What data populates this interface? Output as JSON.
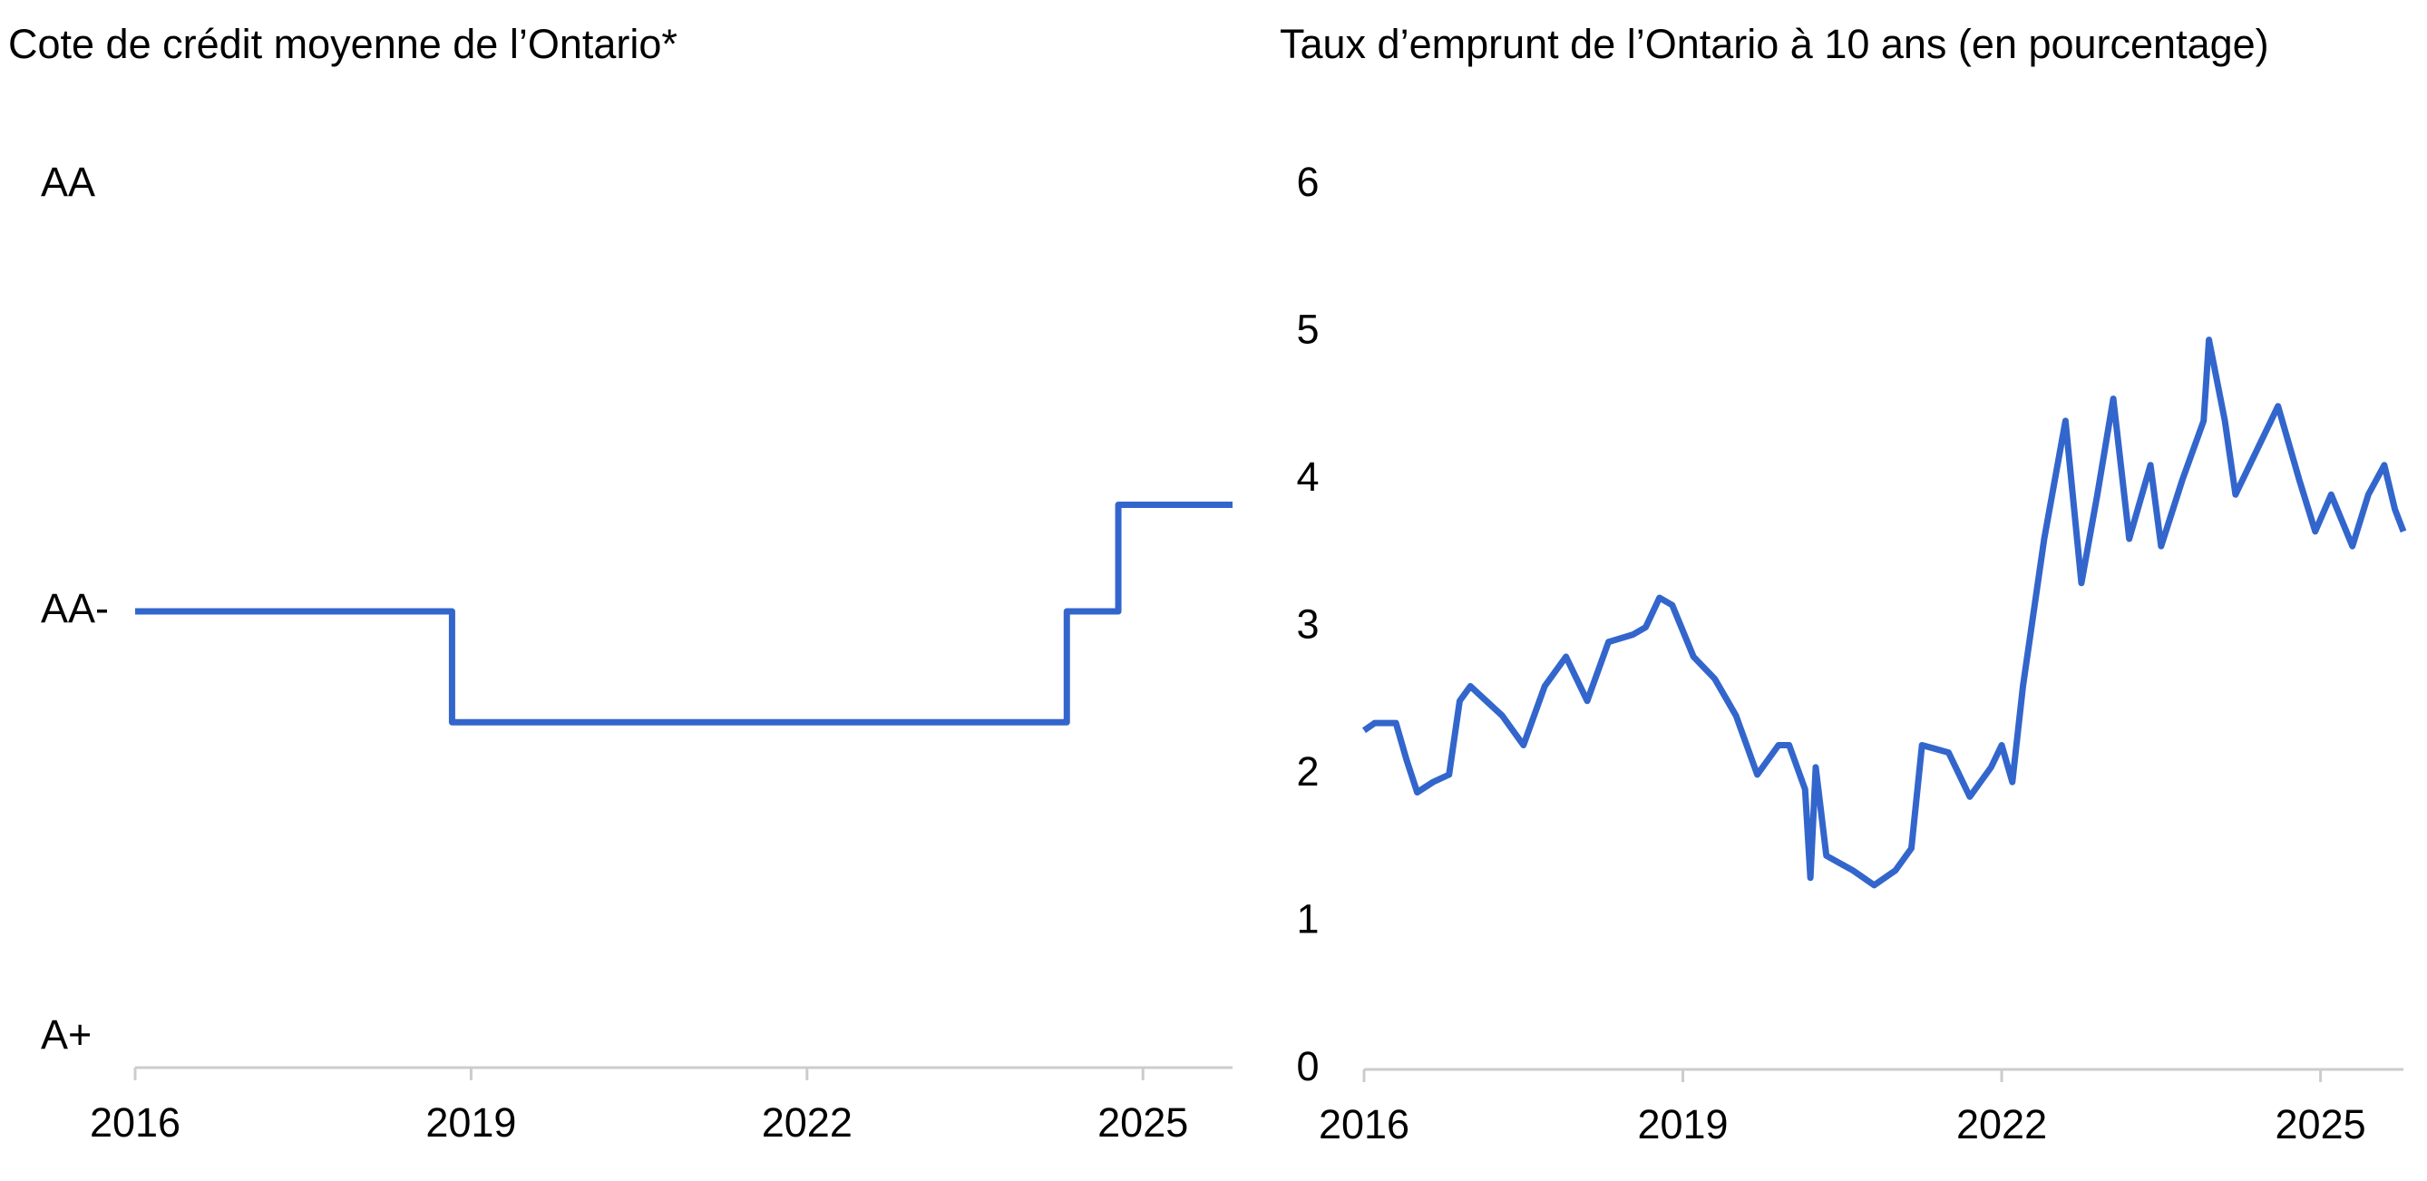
{
  "chart_data": [
    {
      "type": "line",
      "title": "Cote de crédit moyenne de l’Ontario*",
      "x": [
        2016,
        2018.83,
        2018.83,
        2024.32,
        2024.32,
        2024.78,
        2024.78,
        2025.8
      ],
      "series": [
        {
          "color": "#3366cc",
          "values": [
            1,
            1,
            0.74,
            0.74,
            1,
            1,
            1.25,
            1.25
          ]
        }
      ],
      "xlim": [
        2016,
        2025.8
      ],
      "xticks": [
        2016,
        2019,
        2022,
        2025
      ],
      "ylim": [
        -0.07,
        2
      ],
      "yticks": [
        {
          "value": 0,
          "label": "A+"
        },
        {
          "value": 1,
          "label": "AA-"
        },
        {
          "value": 2,
          "label": "AA"
        }
      ]
    },
    {
      "type": "line",
      "title": "Taux d’emprunt de l’Ontario à 10 ans (en pourcentage)",
      "x": [
        2016,
        2016.1,
        2016.3,
        2016.4,
        2016.5,
        2016.65,
        2016.8,
        2016.9,
        2017.0,
        2017.15,
        2017.3,
        2017.5,
        2017.7,
        2017.9,
        2018.1,
        2018.3,
        2018.53,
        2018.65,
        2018.78,
        2018.9,
        2019.1,
        2019.3,
        2019.5,
        2019.7,
        2019.9,
        2020.0,
        2020.15,
        2020.2,
        2020.25,
        2020.35,
        2020.6,
        2020.8,
        2021.0,
        2021.15,
        2021.25,
        2021.5,
        2021.7,
        2021.9,
        2022.0,
        2022.1,
        2022.2,
        2022.4,
        2022.6,
        2022.75,
        2022.9,
        2023.05,
        2023.2,
        2023.4,
        2023.5,
        2023.7,
        2023.9,
        2023.95,
        2024.1,
        2024.2,
        2024.4,
        2024.6,
        2024.8,
        2024.95,
        2025.1,
        2025.3,
        2025.45,
        2025.6,
        2025.7,
        2025.78
      ],
      "series": [
        {
          "color": "#3366cc",
          "values": [
            2.3,
            2.35,
            2.35,
            2.1,
            1.88,
            1.95,
            2.0,
            2.5,
            2.6,
            2.5,
            2.4,
            2.2,
            2.6,
            2.8,
            2.5,
            2.9,
            2.95,
            3.0,
            3.2,
            3.15,
            2.8,
            2.65,
            2.4,
            2.0,
            2.2,
            2.2,
            1.9,
            1.3,
            2.05,
            1.45,
            1.35,
            1.25,
            1.35,
            1.5,
            2.2,
            2.15,
            1.85,
            2.05,
            2.2,
            1.95,
            2.6,
            3.6,
            4.4,
            3.3,
            3.9,
            4.55,
            3.6,
            4.1,
            3.55,
            4.0,
            4.4,
            4.95,
            4.4,
            3.9,
            4.2,
            4.5,
            4.0,
            3.65,
            3.9,
            3.55,
            3.9,
            4.1,
            3.8,
            3.65
          ]
        }
      ],
      "xlim": [
        2016,
        2025.78
      ],
      "xticks": [
        2016,
        2019,
        2022,
        2025
      ],
      "ylim": [
        0,
        6
      ],
      "yticks": [
        0,
        1,
        2,
        3,
        4,
        5,
        6
      ]
    }
  ]
}
